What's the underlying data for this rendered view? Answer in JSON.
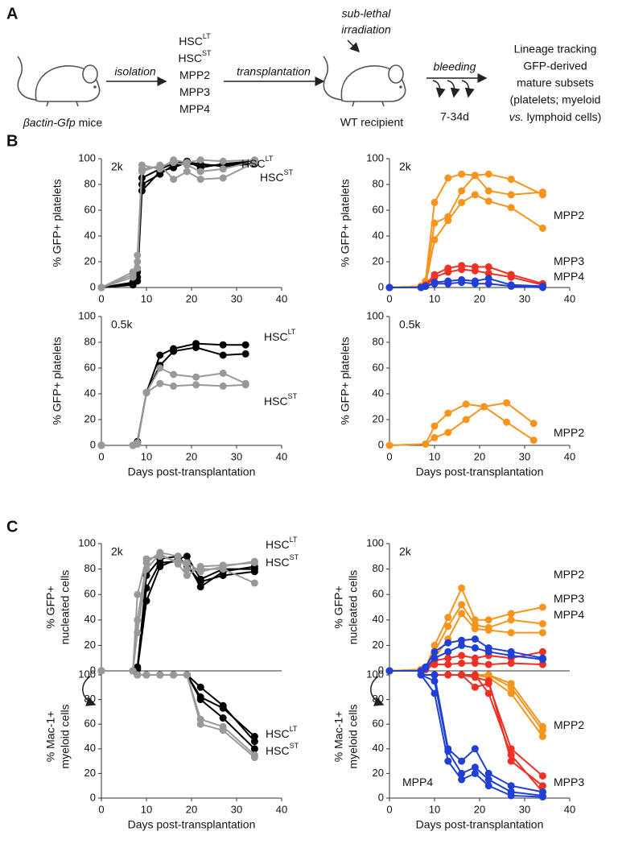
{
  "panels": [
    "A",
    "B",
    "C"
  ],
  "schematic": {
    "populations": [
      {
        "text": "HSC",
        "sup": "LT"
      },
      {
        "text": "HSC",
        "sup": "ST"
      },
      {
        "text": "MPP2"
      },
      {
        "text": "MPP3"
      },
      {
        "text": "MPP4"
      }
    ],
    "source_italic": "βactin-Gfp",
    "source_rest": "mice",
    "step1": "isolation",
    "step2": "transplantation",
    "step3": "bleeding",
    "irradiation": [
      "sub-lethal",
      "irradiation"
    ],
    "recipient": "WT recipient",
    "timing": "7-34d",
    "outcome_lines": [
      "Lineage tracking",
      "GFP-derived",
      "mature subsets",
      "(platelets; myeloid"
    ],
    "outcome_italic": "vs.",
    "outcome_last": "lymphoid cells)"
  },
  "chart_data": [
    {
      "type": "line",
      "annotation": "2k",
      "ylabel": [
        "% GFP+ platelets"
      ],
      "labels": [
        {
          "text": "HSC",
          "sup": "LT"
        },
        {
          "text": "HSC",
          "sup": "ST"
        }
      ],
      "x": [
        0,
        7,
        8,
        9,
        13,
        16,
        19,
        22,
        27,
        34
      ],
      "series": [
        {
          "color": "#000000",
          "values": [
            0,
            3,
            8,
            80,
            88,
            95,
            96,
            95,
            95,
            97
          ]
        },
        {
          "color": "#000000",
          "values": [
            0,
            2,
            5,
            75,
            90,
            93,
            97,
            96,
            94,
            96
          ]
        },
        {
          "color": "#000000",
          "values": [
            0,
            4,
            12,
            85,
            92,
            96,
            98,
            93,
            96,
            98
          ]
        },
        {
          "color": "#999999",
          "values": [
            0,
            10,
            20,
            95,
            92,
            99,
            97,
            99,
            98,
            99
          ]
        },
        {
          "color": "#999999",
          "values": [
            0,
            8,
            25,
            90,
            95,
            84,
            90,
            84,
            85,
            97
          ]
        },
        {
          "color": "#999999",
          "values": [
            0,
            12,
            15,
            92,
            94,
            97,
            95,
            90,
            92,
            98
          ]
        }
      ],
      "xlim": [
        0,
        40
      ],
      "xticks": [
        0,
        10,
        20,
        30,
        40
      ],
      "ylim": [
        0,
        100
      ],
      "yticks": [
        0,
        20,
        40,
        60,
        80,
        100
      ]
    },
    {
      "type": "line",
      "annotation": "2k",
      "ylabel": [
        "% GFP+ platelets"
      ],
      "labels": [
        {
          "text": "MPP2"
        },
        {
          "text": "MPP3"
        },
        {
          "text": "MPP4"
        }
      ],
      "x": [
        0,
        7,
        8,
        10,
        13,
        16,
        19,
        22,
        27,
        34
      ],
      "series": [
        {
          "color": "#f7941d",
          "values": [
            0,
            1,
            5,
            66,
            85,
            88,
            87,
            88,
            84,
            72
          ]
        },
        {
          "color": "#f7941d",
          "values": [
            0,
            1,
            3,
            50,
            55,
            75,
            87,
            75,
            72,
            74
          ]
        },
        {
          "color": "#f7941d",
          "values": [
            0,
            1,
            2,
            37,
            52,
            66,
            72,
            67,
            62,
            46
          ]
        },
        {
          "color": "#ee3124",
          "values": [
            0,
            0,
            2,
            10,
            15,
            17,
            16,
            16,
            10,
            3
          ]
        },
        {
          "color": "#ee3124",
          "values": [
            0,
            0,
            1,
            8,
            12,
            14,
            13,
            11,
            8,
            2
          ]
        },
        {
          "color": "#1f3fd6",
          "values": [
            0,
            0,
            1,
            4,
            5,
            6,
            5,
            7,
            2,
            1
          ]
        },
        {
          "color": "#1f3fd6",
          "values": [
            0,
            0,
            1,
            3,
            3,
            4,
            3,
            3,
            1,
            0
          ]
        }
      ],
      "xlim": [
        0,
        40
      ],
      "xticks": [
        0,
        10,
        20,
        30,
        40
      ],
      "ylim": [
        0,
        100
      ],
      "yticks": [
        0,
        20,
        40,
        60,
        80,
        100
      ]
    },
    {
      "type": "line",
      "annotation": "0.5k",
      "ylabel": [
        "% GFP+ platelets"
      ],
      "xlabel": "Days post-transplantation",
      "labels": [
        {
          "text": "HSC",
          "sup": "LT"
        },
        {
          "text": "HSC",
          "sup": "ST"
        }
      ],
      "x": [
        0,
        7,
        8,
        10,
        13,
        16,
        21,
        27,
        32
      ],
      "series": [
        {
          "color": "#000000",
          "values": [
            0,
            0,
            2,
            41,
            70,
            75,
            79,
            78,
            78
          ]
        },
        {
          "color": "#000000",
          "values": [
            0,
            0,
            3,
            41,
            62,
            73,
            76,
            70,
            71
          ]
        },
        {
          "color": "#999999",
          "values": [
            0,
            0,
            2,
            41,
            60,
            55,
            53,
            56,
            48
          ]
        },
        {
          "color": "#999999",
          "values": [
            0,
            0,
            1,
            41,
            48,
            46,
            47,
            46,
            47
          ]
        }
      ],
      "xlim": [
        0,
        40
      ],
      "xticks": [
        0,
        10,
        20,
        30,
        40
      ],
      "ylim": [
        0,
        100
      ],
      "yticks": [
        0,
        20,
        40,
        60,
        80,
        100
      ]
    },
    {
      "type": "line",
      "annotation": "0.5k",
      "ylabel": [
        "% GFP+ platelets"
      ],
      "xlabel": "Days post-transplantation",
      "labels": [
        {
          "text": "MPP2"
        }
      ],
      "x": [
        0,
        8,
        10,
        13,
        17,
        21,
        26,
        32
      ],
      "series": [
        {
          "color": "#f7941d",
          "values": [
            0,
            1,
            15,
            25,
            32,
            30,
            33,
            17
          ]
        },
        {
          "color": "#f7941d",
          "values": [
            0,
            1,
            6,
            10,
            20,
            30,
            18,
            4
          ]
        }
      ],
      "xlim": [
        0,
        40
      ],
      "xticks": [
        0,
        10,
        20,
        30,
        40
      ],
      "ylim": [
        0,
        100
      ],
      "yticks": [
        0,
        20,
        40,
        60,
        80,
        100
      ]
    },
    {
      "type": "line",
      "annotation": "2k",
      "ylabel": [
        "% GFP+",
        "nucleated cells"
      ],
      "labels": [
        {
          "text": "HSC",
          "sup": "LT"
        },
        {
          "text": "HSC",
          "sup": "ST"
        }
      ],
      "x": [
        0,
        7,
        8,
        10,
        13,
        17,
        19,
        22,
        27,
        34
      ],
      "series": [
        {
          "color": "#000000",
          "values": [
            0,
            0,
            1,
            55,
            82,
            88,
            90,
            72,
            80,
            80
          ]
        },
        {
          "color": "#000000",
          "values": [
            0,
            0,
            3,
            65,
            85,
            86,
            85,
            66,
            78,
            82
          ]
        },
        {
          "color": "#000000",
          "values": [
            0,
            0,
            2,
            75,
            88,
            90,
            82,
            70,
            75,
            78
          ]
        },
        {
          "color": "#999999",
          "values": [
            0,
            0,
            40,
            85,
            93,
            90,
            80,
            80,
            80,
            69
          ]
        },
        {
          "color": "#999999",
          "values": [
            0,
            0,
            30,
            80,
            92,
            84,
            75,
            82,
            83,
            85
          ]
        },
        {
          "color": "#999999",
          "values": [
            0,
            0,
            60,
            88,
            90,
            86,
            85,
            78,
            82,
            86
          ]
        }
      ],
      "xlim": [
        0,
        40
      ],
      "ylim": [
        0,
        100
      ],
      "yticks": [
        0,
        20,
        40,
        60,
        80,
        100
      ]
    },
    {
      "type": "line",
      "annotation": "2k",
      "ylabel": [
        "% GFP+",
        "nucleated cells"
      ],
      "labels": [
        {
          "text": "MPP2"
        },
        {
          "text": "MPP3"
        },
        {
          "text": "MPP4"
        }
      ],
      "x": [
        0,
        7,
        8,
        10,
        13,
        16,
        19,
        22,
        27,
        34
      ],
      "series": [
        {
          "color": "#f7941d",
          "values": [
            0,
            1,
            2,
            20,
            42,
            65,
            40,
            40,
            45,
            50
          ]
        },
        {
          "color": "#f7941d",
          "values": [
            0,
            1,
            2,
            15,
            35,
            52,
            36,
            34,
            40,
            37
          ]
        },
        {
          "color": "#f7941d",
          "values": [
            0,
            1,
            2,
            10,
            25,
            45,
            33,
            32,
            30,
            30
          ]
        },
        {
          "color": "#ee3124",
          "values": [
            0,
            0,
            1,
            8,
            10,
            12,
            10,
            12,
            10,
            15
          ]
        },
        {
          "color": "#ee3124",
          "values": [
            0,
            0,
            1,
            5,
            5,
            6,
            6,
            5,
            6,
            5
          ]
        },
        {
          "color": "#1f3fd6",
          "values": [
            0,
            0,
            3,
            15,
            22,
            24,
            25,
            18,
            15,
            10
          ]
        },
        {
          "color": "#1f3fd6",
          "values": [
            0,
            0,
            2,
            10,
            15,
            20,
            18,
            15,
            12,
            9
          ]
        }
      ],
      "xlim": [
        0,
        40
      ],
      "ylim": [
        0,
        100
      ],
      "yticks": [
        0,
        20,
        40,
        60,
        80,
        100
      ]
    },
    {
      "type": "line",
      "ylabel": [
        "% Mac-1+",
        "myeloid cells"
      ],
      "xlabel": "Days post-transplantation",
      "labels": [
        {
          "text": "HSC",
          "sup": "LT"
        },
        {
          "text": "HSC",
          "sup": "ST"
        }
      ],
      "x": [
        8,
        10,
        13,
        16,
        19,
        22,
        27,
        34
      ],
      "series": [
        {
          "color": "#000000",
          "values": [
            100,
            100,
            100,
            100,
            100,
            82,
            73,
            50
          ]
        },
        {
          "color": "#000000",
          "values": [
            100,
            100,
            100,
            100,
            100,
            80,
            65,
            40
          ]
        },
        {
          "color": "#000000",
          "values": [
            100,
            100,
            100,
            100,
            100,
            90,
            75,
            46
          ]
        },
        {
          "color": "#999999",
          "values": [
            100,
            100,
            100,
            100,
            100,
            64,
            58,
            35
          ]
        },
        {
          "color": "#999999",
          "values": [
            100,
            100,
            100,
            100,
            100,
            60,
            55,
            33
          ]
        }
      ],
      "xlim": [
        0,
        40
      ],
      "xticks": [
        0,
        10,
        20,
        30,
        40
      ],
      "ylim": [
        0,
        100
      ],
      "yticks": [
        0,
        20,
        40,
        60,
        80,
        100
      ]
    },
    {
      "type": "line",
      "ylabel": [
        "% Mac-1+",
        "myeloid cells"
      ],
      "xlabel": "Days post-transplantation",
      "labels": [
        {
          "text": "MPP2"
        },
        {
          "text": "MPP3"
        },
        {
          "text": "MPP4"
        }
      ],
      "x": [
        7,
        10,
        13,
        16,
        19,
        22,
        27,
        34
      ],
      "series": [
        {
          "color": "#f7941d",
          "values": [
            100,
            100,
            100,
            100,
            100,
            100,
            93,
            58
          ]
        },
        {
          "color": "#f7941d",
          "values": [
            100,
            100,
            100,
            100,
            100,
            98,
            85,
            50
          ]
        },
        {
          "color": "#f7941d",
          "values": [
            100,
            100,
            100,
            100,
            100,
            100,
            90,
            55
          ]
        },
        {
          "color": "#ee3124",
          "values": [
            100,
            100,
            100,
            100,
            90,
            93,
            40,
            18
          ]
        },
        {
          "color": "#ee3124",
          "values": [
            100,
            100,
            100,
            100,
            98,
            95,
            30,
            10
          ]
        },
        {
          "color": "#ee3124",
          "values": [
            100,
            100,
            100,
            100,
            100,
            85,
            35,
            5
          ]
        },
        {
          "color": "#1f3fd6",
          "values": [
            100,
            100,
            40,
            30,
            40,
            20,
            10,
            5
          ]
        },
        {
          "color": "#1f3fd6",
          "values": [
            100,
            95,
            38,
            20,
            25,
            15,
            5,
            2
          ]
        },
        {
          "color": "#1f3fd6",
          "values": [
            100,
            85,
            30,
            15,
            20,
            10,
            2,
            1
          ]
        }
      ],
      "xlim": [
        0,
        40
      ],
      "xticks": [
        0,
        10,
        20,
        30,
        40
      ],
      "ylim": [
        0,
        100
      ],
      "yticks": [
        0,
        20,
        40,
        60,
        80,
        100
      ]
    }
  ]
}
